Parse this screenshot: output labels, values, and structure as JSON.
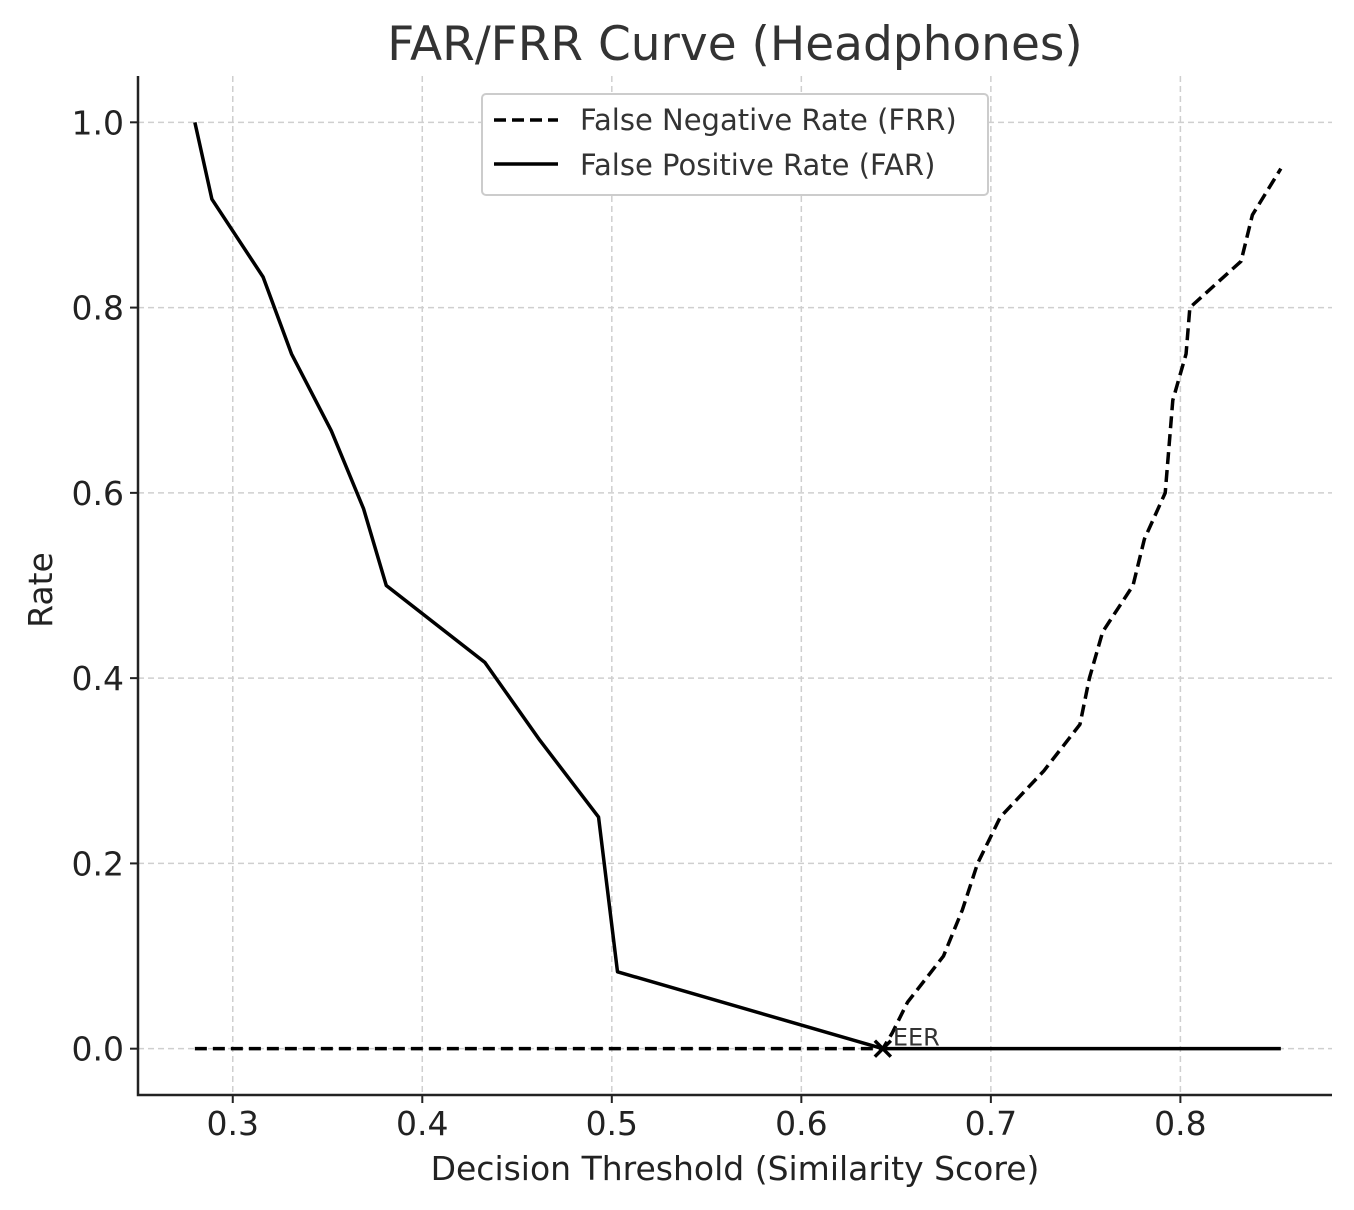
{
  "chart_data": {
    "type": "line",
    "title": "FAR/FRR Curve (Headphones)",
    "xlabel": "Decision Threshold (Similarity Score)",
    "ylabel": "Rate",
    "xlim": [
      0.25,
      0.88
    ],
    "ylim": [
      -0.05,
      1.05
    ],
    "xticks": [
      "0.3",
      "0.4",
      "0.5",
      "0.6",
      "0.7",
      "0.8"
    ],
    "yticks": [
      "0.0",
      "0.2",
      "0.4",
      "0.6",
      "0.8",
      "1.0"
    ],
    "grid": true,
    "legend_position": "top-center",
    "series": [
      {
        "name": "False Negative Rate (FRR)",
        "style": "dashed",
        "color": "#000000",
        "points": [
          [
            0.28,
            0.0
          ],
          [
            0.643,
            0.0
          ],
          [
            0.648,
            0.017
          ],
          [
            0.656,
            0.05
          ],
          [
            0.675,
            0.1
          ],
          [
            0.685,
            0.15
          ],
          [
            0.693,
            0.2
          ],
          [
            0.705,
            0.25
          ],
          [
            0.728,
            0.3
          ],
          [
            0.747,
            0.35
          ],
          [
            0.752,
            0.4
          ],
          [
            0.759,
            0.45
          ],
          [
            0.775,
            0.5
          ],
          [
            0.781,
            0.55
          ],
          [
            0.792,
            0.6
          ],
          [
            0.794,
            0.65
          ],
          [
            0.796,
            0.7
          ],
          [
            0.803,
            0.75
          ],
          [
            0.805,
            0.8
          ],
          [
            0.832,
            0.85
          ],
          [
            0.838,
            0.9
          ],
          [
            0.853,
            0.95
          ]
        ]
      },
      {
        "name": "False Positive Rate (FAR)",
        "style": "solid",
        "color": "#000000",
        "points": [
          [
            0.28,
            1.0
          ],
          [
            0.289,
            0.917
          ],
          [
            0.316,
            0.833
          ],
          [
            0.331,
            0.75
          ],
          [
            0.352,
            0.667
          ],
          [
            0.369,
            0.583
          ],
          [
            0.381,
            0.5
          ],
          [
            0.433,
            0.417
          ],
          [
            0.462,
            0.333
          ],
          [
            0.493,
            0.25
          ],
          [
            0.503,
            0.083
          ],
          [
            0.643,
            0.0
          ],
          [
            0.853,
            0.0
          ]
        ]
      }
    ],
    "annotations": [
      {
        "text": "EER",
        "x": 0.643,
        "y": 0.0,
        "marker": "x"
      }
    ]
  }
}
